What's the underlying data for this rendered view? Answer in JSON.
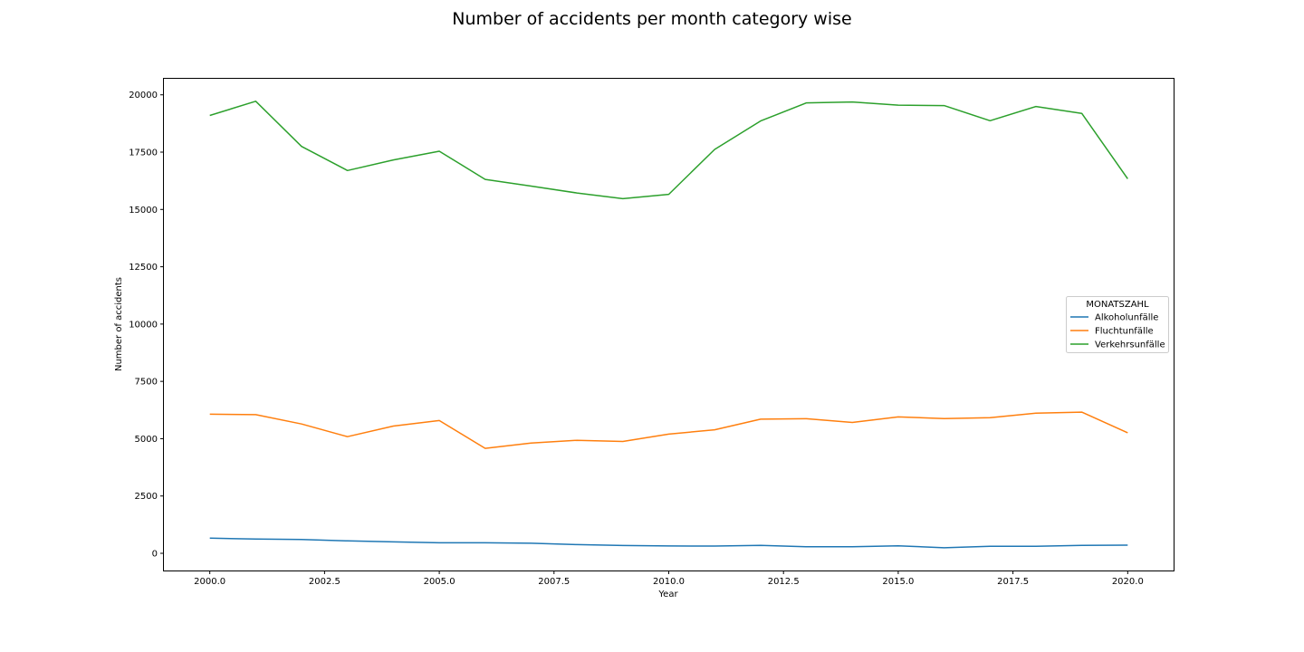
{
  "figure": {
    "title": "Number of accidents per month category wise"
  },
  "chart_data": {
    "type": "line",
    "title": "Number of accidents per month category wise",
    "xlabel": "Year",
    "ylabel": "Number of accidents",
    "xlim": [
      1999.0,
      2021.0
    ],
    "ylim": [
      -750,
      20700
    ],
    "x_ticks": [
      2000.0,
      2002.5,
      2005.0,
      2007.5,
      2010.0,
      2012.5,
      2015.0,
      2017.5,
      2020.0
    ],
    "x_tick_labels": [
      "2000.0",
      "2002.5",
      "2005.0",
      "2007.5",
      "2010.0",
      "2012.5",
      "2015.0",
      "2017.5",
      "2020.0"
    ],
    "y_ticks": [
      0,
      2500,
      5000,
      7500,
      10000,
      12500,
      15000,
      17500,
      20000
    ],
    "y_tick_labels": [
      "0",
      "2500",
      "5000",
      "7500",
      "10000",
      "12500",
      "15000",
      "17500",
      "20000"
    ],
    "grid": false,
    "legend": {
      "title": "MONATSZAHL",
      "placement": "center-right"
    },
    "x": [
      2000,
      2001,
      2002,
      2003,
      2004,
      2005,
      2006,
      2007,
      2008,
      2009,
      2010,
      2011,
      2012,
      2013,
      2014,
      2015,
      2016,
      2017,
      2018,
      2019,
      2020
    ],
    "series": [
      {
        "name": "Alkoholunfälle",
        "color": "#1f77b4",
        "values": [
          660,
          625,
          600,
          540,
          500,
          460,
          460,
          440,
          380,
          340,
          320,
          315,
          345,
          285,
          290,
          330,
          240,
          310,
          310,
          345,
          355
        ]
      },
      {
        "name": "Fluchtunfälle",
        "color": "#ff7f0e",
        "values": [
          6070,
          6050,
          5640,
          5090,
          5550,
          5790,
          4580,
          4810,
          4930,
          4880,
          5200,
          5390,
          5850,
          5870,
          5710,
          5950,
          5880,
          5920,
          6110,
          6160,
          5260
        ]
      },
      {
        "name": "Verkehrsunfälle",
        "color": "#2ca02c",
        "values": [
          19100,
          19720,
          17750,
          16700,
          17160,
          17540,
          16310,
          16020,
          15720,
          15470,
          15660,
          17620,
          18860,
          19650,
          19690,
          19550,
          19530,
          18870,
          19490,
          19190,
          16340
        ]
      }
    ]
  }
}
